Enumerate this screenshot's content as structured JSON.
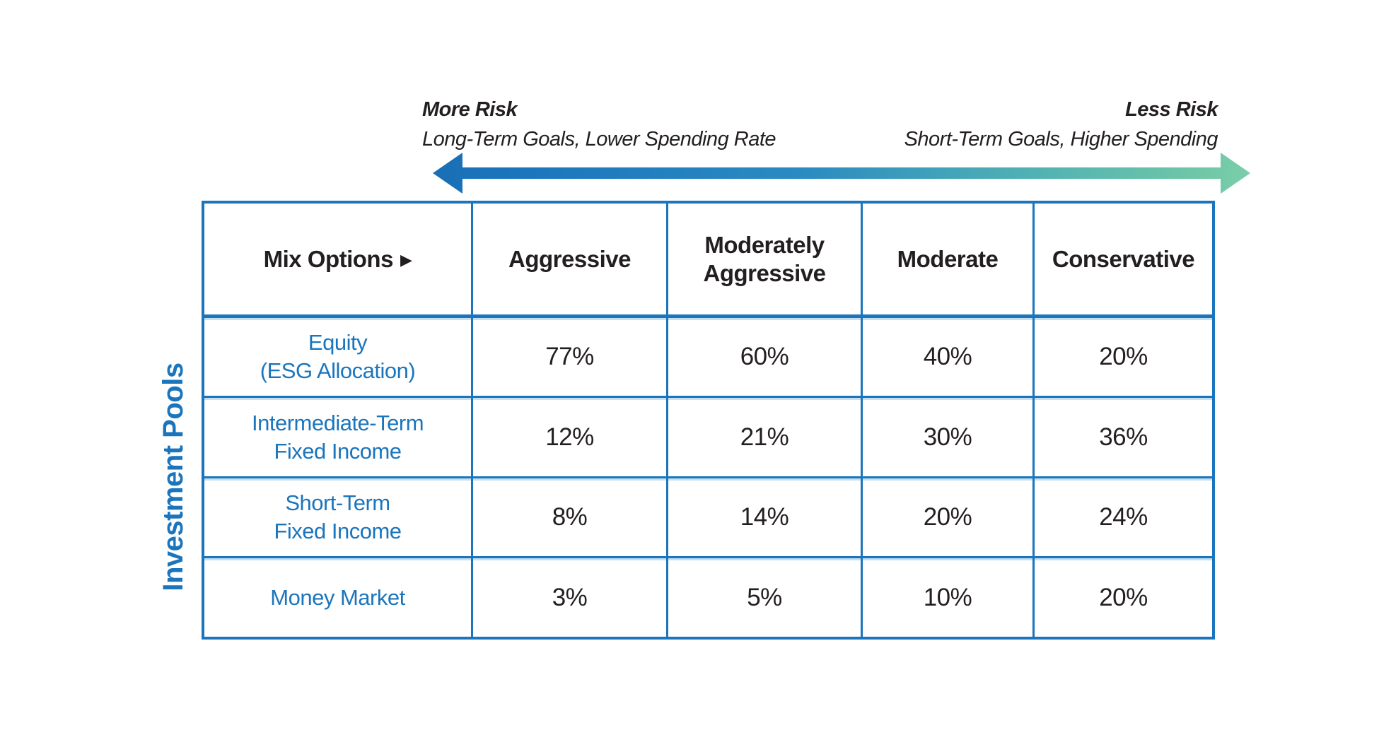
{
  "figure": {
    "risk_scale": {
      "left_title": "More Risk",
      "left_subtitle": "Long-Term Goals, Lower Spending Rate",
      "right_title": "Less Risk",
      "right_subtitle": "Short-Term Goals, Higher Spending"
    },
    "side_label": "Investment Pools",
    "corner_label": "Mix Options",
    "corner_arrow_glyph": "▶"
  },
  "chart_data": {
    "type": "table",
    "title": "Investment Pools mix options by risk profile",
    "columns": [
      "Aggressive",
      "Moderately Aggressive",
      "Moderate",
      "Conservative"
    ],
    "rows": [
      {
        "label": "Equity (ESG Allocation)",
        "label_lines": [
          "Equity",
          "(ESG Allocation)"
        ],
        "values": [
          "77%",
          "60%",
          "40%",
          "20%"
        ]
      },
      {
        "label": "Intermediate-Term Fixed Income",
        "label_lines": [
          "Intermediate-Term",
          "Fixed Income"
        ],
        "values": [
          "12%",
          "21%",
          "30%",
          "36%"
        ]
      },
      {
        "label": "Short-Term Fixed Income",
        "label_lines": [
          "Short-Term",
          "Fixed Income"
        ],
        "values": [
          "8%",
          "14%",
          "20%",
          "24%"
        ]
      },
      {
        "label": "Money Market",
        "label_lines": [
          "Money Market"
        ],
        "values": [
          "3%",
          "5%",
          "10%",
          "20%"
        ]
      }
    ],
    "layout": {
      "risk_axis": "More Risk (left) to Less Risk (right)",
      "row_axis_label": "Investment Pools"
    }
  },
  "colors": {
    "brand_blue": "#1b75bc",
    "seafoam_green": "#6fc7a6",
    "ink": "#231f20"
  }
}
